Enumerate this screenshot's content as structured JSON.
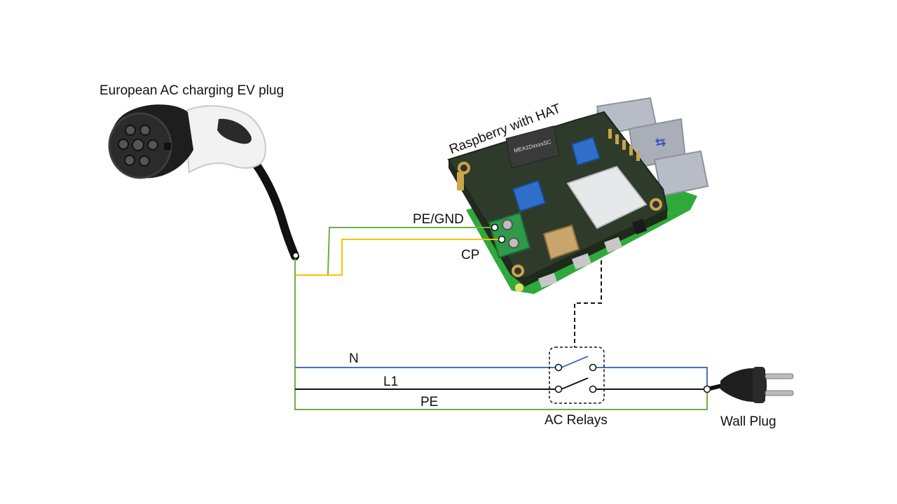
{
  "labels": {
    "ev_plug": "European AC charging EV plug",
    "raspberry": "Raspberry with HAT",
    "pe_gnd": "PE/GND",
    "cp": "CP",
    "n": "N",
    "l1": "L1",
    "pe": "PE",
    "relays": "AC Relays",
    "wall_plug": "Wall Plug",
    "module_marking": "MEA1DxxxxSC"
  },
  "colors": {
    "pe_wire": "#70ad47",
    "cp_wire": "#ffc000",
    "n_wire": "#4472c4",
    "l1_wire": "#111111",
    "control_line": "#111111",
    "pcb_green": "#2f3b2a",
    "pcb_base": "#2faa3a",
    "connector_green": "#2e9a4a",
    "trimmer_blue": "#2f6fc9"
  }
}
